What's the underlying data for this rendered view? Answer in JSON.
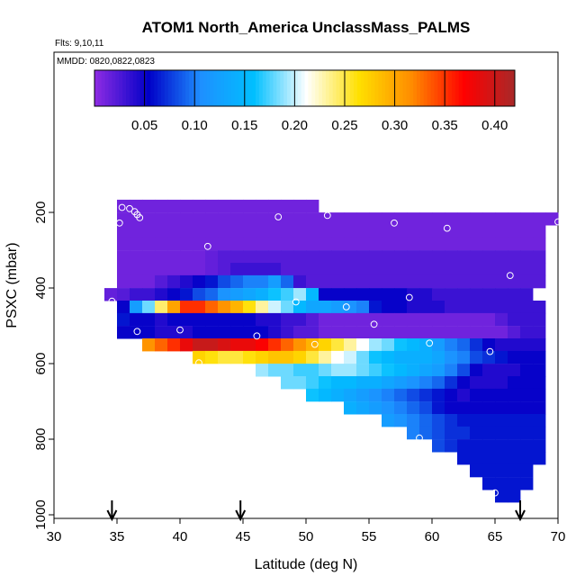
{
  "chart_data": {
    "type": "heatmap",
    "title": "ATOM1 North_America UnclassMass_PALMS",
    "subtitle_flights": "Flts: 9,10,11",
    "subtitle_dates": "MMDD: 0820,0822,0823",
    "xlabel": "Latitude (deg N)",
    "ylabel": "PSXC (mbar)",
    "xlim": [
      30,
      70
    ],
    "ylim": [
      1000,
      0
    ],
    "x_ticks": [
      30,
      35,
      40,
      45,
      50,
      55,
      60,
      65,
      70
    ],
    "y_ticks": [
      200,
      400,
      600,
      800,
      1000
    ],
    "colorbar": {
      "range": [
        0.0,
        0.42
      ],
      "ticks": [
        0.05,
        0.1,
        0.15,
        0.2,
        0.25,
        0.3,
        0.35,
        0.4
      ],
      "tick_labels": [
        "0.05",
        "0.10",
        "0.15",
        "0.20",
        "0.25",
        "0.30",
        "0.35",
        "0.40"
      ],
      "colors": [
        "#8a2be2",
        "#0000c8",
        "#1e90ff",
        "#00bfff",
        "#ffffff",
        "#ffe000",
        "#ff8c00",
        "#ff0000",
        "#a52a2a"
      ]
    },
    "cell_size": {
      "dlat": 1,
      "dp": 33.3
    },
    "rows": [
      {
        "p": 183,
        "lat0": 35,
        "values": [
          0.01,
          0.01,
          0.01,
          0.01,
          0.01,
          0.01,
          0.01,
          0.01,
          0.01,
          0.01,
          0.01,
          0.01,
          0.01,
          0.01,
          0.01,
          0.01
        ]
      },
      {
        "p": 217,
        "lat0": 35,
        "values": [
          0.01,
          0.01,
          0.01,
          0.01,
          0.01,
          0.01,
          0.01,
          0.01,
          0.01,
          0.01,
          0.01,
          0.01,
          0.01,
          0.01,
          0.01,
          0.01,
          0.01,
          0.01,
          0.01,
          0.01,
          0.01,
          0.01,
          0.01,
          0.01,
          0.01,
          0.01,
          0.01,
          0.01,
          0.01,
          0.01,
          0.01,
          0.01,
          0.01,
          0.01,
          0.01
        ]
      },
      {
        "p": 250,
        "lat0": 35,
        "values": [
          0.01,
          0.01,
          0.01,
          0.01,
          0.01,
          0.01,
          0.01,
          0.01,
          0.01,
          0.01,
          0.01,
          0.01,
          0.01,
          0.01,
          0.01,
          0.01,
          0.01,
          0.01,
          0.01,
          0.01,
          0.01,
          0.01,
          0.01,
          0.01,
          0.01,
          0.01,
          0.01,
          0.01,
          0.01,
          0.01,
          0.01,
          0.01,
          0.01,
          0.01
        ]
      },
      {
        "p": 283,
        "lat0": 35,
        "values": [
          0.01,
          0.01,
          0.01,
          0.01,
          0.01,
          0.01,
          0.01,
          0.01,
          0.01,
          0.01,
          0.01,
          0.01,
          0.01,
          0.01,
          0.01,
          0.01,
          0.01,
          0.01,
          0.01,
          0.01,
          0.01,
          0.01,
          0.01,
          0.01,
          0.01,
          0.01,
          0.01,
          0.01,
          0.01,
          0.01,
          0.01,
          0.01,
          0.01,
          0.01
        ]
      },
      {
        "p": 317,
        "lat0": 35,
        "values": [
          0.01,
          0.01,
          0.01,
          0.01,
          0.01,
          0.01,
          0.01,
          0.015,
          0.02,
          0.02,
          0.02,
          0.02,
          0.02,
          0.02,
          0.02,
          0.02,
          0.02,
          0.02,
          0.02,
          0.02,
          0.02,
          0.02,
          0.02,
          0.02,
          0.02,
          0.02,
          0.02,
          0.02,
          0.02,
          0.02,
          0.02,
          0.02,
          0.02,
          0.02
        ]
      },
      {
        "p": 350,
        "lat0": 35,
        "values": [
          0.01,
          0.01,
          0.01,
          0.01,
          0.01,
          0.01,
          0.01,
          0.015,
          0.02,
          0.03,
          0.03,
          0.03,
          0.03,
          0.02,
          0.02,
          0.02,
          0.02,
          0.02,
          0.02,
          0.02,
          0.02,
          0.02,
          0.02,
          0.02,
          0.02,
          0.02,
          0.02,
          0.02,
          0.02,
          0.02,
          0.02,
          0.02,
          0.02,
          0.02
        ]
      },
      {
        "p": 383,
        "lat0": 35,
        "values": [
          0.01,
          0.01,
          0.01,
          0.02,
          0.03,
          0.04,
          0.05,
          0.06,
          0.08,
          0.09,
          0.1,
          0.1,
          0.12,
          0.09,
          0.03,
          0.02,
          0.02,
          0.02,
          0.02,
          0.02,
          0.02,
          0.02,
          0.02,
          0.02,
          0.02,
          0.02,
          0.02,
          0.02,
          0.02,
          0.02,
          0.02,
          0.02,
          0.02,
          0.02
        ]
      },
      {
        "p": 417,
        "lat0": 34,
        "values": [
          0.015,
          0.02,
          0.03,
          0.03,
          0.04,
          0.05,
          0.06,
          0.08,
          0.09,
          0.11,
          0.12,
          0.13,
          0.14,
          0.16,
          0.17,
          0.19,
          0.15,
          0.05,
          0.05,
          0.05,
          0.05,
          0.05,
          0.05,
          0.05,
          0.04,
          0.04,
          0.03,
          0.03,
          0.03,
          0.03,
          0.03,
          0.03,
          0.03,
          0.03
        ]
      },
      {
        "p": 450,
        "lat0": 35,
        "values": [
          0.05,
          0.12,
          0.18,
          0.24,
          0.3,
          0.35,
          0.35,
          0.33,
          0.31,
          0.29,
          0.26,
          0.23,
          0.2,
          0.18,
          0.15,
          0.13,
          0.13,
          0.12,
          0.11,
          0.1,
          0.06,
          0.05,
          0.05,
          0.04,
          0.04,
          0.04,
          0.03,
          0.03,
          0.03,
          0.03,
          0.03,
          0.03,
          0.03,
          0.03
        ]
      },
      {
        "p": 483,
        "lat0": 35,
        "values": [
          0.06,
          0.05,
          0.05,
          0.04,
          0.05,
          0.05,
          0.05,
          0.05,
          0.05,
          0.05,
          0.05,
          0.04,
          0.04,
          0.03,
          0.03,
          0.02,
          0.01,
          0.01,
          0.01,
          0.01,
          0.01,
          0.01,
          0.01,
          0.01,
          0.01,
          0.01,
          0.01,
          0.01,
          0.01,
          0.01,
          0.02,
          0.03,
          0.03,
          0.03
        ]
      },
      {
        "p": 517,
        "lat0": 35,
        "values": [
          0.05,
          0.05,
          0.05,
          0.04,
          0.04,
          0.04,
          0.05,
          0.05,
          0.05,
          0.05,
          0.05,
          0.05,
          0.04,
          0.03,
          0.02,
          0.02,
          0.01,
          0.01,
          0.01,
          0.01,
          0.01,
          0.01,
          0.01,
          0.01,
          0.01,
          0.01,
          0.01,
          0.01,
          0.01,
          0.01,
          0.01,
          0.02,
          0.03,
          0.03
        ]
      },
      {
        "p": 550,
        "lat0": 37,
        "values": [
          0.31,
          0.33,
          0.35,
          0.38,
          0.4,
          0.4,
          0.39,
          0.38,
          0.38,
          0.37,
          0.35,
          0.33,
          0.31,
          0.29,
          0.27,
          0.25,
          0.23,
          0.21,
          0.19,
          0.18,
          0.16,
          0.15,
          0.14,
          0.12,
          0.1,
          0.09,
          0.07,
          0.05,
          0.04,
          0.04,
          0.04,
          0.04
        ]
      },
      {
        "p": 583,
        "lat0": 41,
        "values": [
          0.27,
          0.26,
          0.25,
          0.25,
          0.26,
          0.27,
          0.28,
          0.28,
          0.27,
          0.25,
          0.23,
          0.21,
          0.2,
          0.18,
          0.16,
          0.15,
          0.14,
          0.14,
          0.14,
          0.13,
          0.11,
          0.1,
          0.08,
          0.07,
          0.06,
          0.05,
          0.05,
          0.05
        ]
      },
      {
        "p": 617,
        "lat0": 46,
        "values": [
          0.19,
          0.18,
          0.18,
          0.17,
          0.17,
          0.18,
          0.19,
          0.19,
          0.18,
          0.17,
          0.16,
          0.15,
          0.14,
          0.13,
          0.12,
          0.1,
          0.08,
          0.05,
          0.04,
          0.04,
          0.04,
          0.05,
          0.05
        ]
      },
      {
        "p": 650,
        "lat0": 48,
        "values": [
          0.18,
          0.18,
          0.17,
          0.16,
          0.15,
          0.15,
          0.14,
          0.14,
          0.13,
          0.12,
          0.11,
          0.1,
          0.09,
          0.07,
          0.05,
          0.04,
          0.04,
          0.04,
          0.05,
          0.05,
          0.05
        ]
      },
      {
        "p": 683,
        "lat0": 50,
        "values": [
          0.16,
          0.15,
          0.14,
          0.13,
          0.12,
          0.11,
          0.1,
          0.09,
          0.08,
          0.07,
          0.06,
          0.05,
          0.04,
          0.05,
          0.05,
          0.05,
          0.05,
          0.05,
          0.05
        ]
      },
      {
        "p": 717,
        "lat0": 53,
        "values": [
          0.14,
          0.13,
          0.12,
          0.11,
          0.1,
          0.09,
          0.08,
          0.06,
          0.05,
          0.05,
          0.05,
          0.05,
          0.05,
          0.05,
          0.05,
          0.05
        ]
      },
      {
        "p": 750,
        "lat0": 56,
        "values": [
          0.12,
          0.11,
          0.1,
          0.09,
          0.08,
          0.07,
          0.06,
          0.06,
          0.06,
          0.06,
          0.06,
          0.06,
          0.06
        ]
      },
      {
        "p": 783,
        "lat0": 58,
        "values": [
          0.1,
          0.09,
          0.08,
          0.07,
          0.07,
          0.06,
          0.06,
          0.06,
          0.06,
          0.06,
          0.06
        ]
      },
      {
        "p": 817,
        "lat0": 60,
        "values": [
          0.08,
          0.07,
          0.06,
          0.06,
          0.06,
          0.06,
          0.06,
          0.06,
          0.06
        ]
      },
      {
        "p": 850,
        "lat0": 62,
        "values": [
          0.06,
          0.06,
          0.06,
          0.06,
          0.06,
          0.06,
          0.06
        ]
      },
      {
        "p": 883,
        "lat0": 63,
        "values": [
          0.06,
          0.06,
          0.06,
          0.06,
          0.06
        ]
      },
      {
        "p": 917,
        "lat0": 64,
        "values": [
          0.06,
          0.06,
          0.06,
          0.06
        ]
      },
      {
        "p": 950,
        "lat0": 65,
        "values": [
          0.06,
          0.06
        ]
      }
    ],
    "sample_points": [
      [
        35.4,
        187
      ],
      [
        36.0,
        190
      ],
      [
        36.4,
        198
      ],
      [
        36.6,
        206
      ],
      [
        36.8,
        214
      ],
      [
        35.2,
        228
      ],
      [
        42.2,
        290
      ],
      [
        47.8,
        212
      ],
      [
        51.7,
        208
      ],
      [
        57.0,
        228
      ],
      [
        61.2,
        242
      ],
      [
        70.0,
        225
      ],
      [
        66.2,
        367
      ],
      [
        34.6,
        435
      ],
      [
        49.2,
        437
      ],
      [
        53.2,
        450
      ],
      [
        58.2,
        425
      ],
      [
        55.4,
        496
      ],
      [
        36.6,
        515
      ],
      [
        40.0,
        511
      ],
      [
        46.1,
        527
      ],
      [
        50.7,
        549
      ],
      [
        59.8,
        546
      ],
      [
        64.6,
        568
      ],
      [
        37.8,
        605
      ],
      [
        41.5,
        598
      ],
      [
        59.0,
        797
      ],
      [
        65.0,
        942
      ]
    ],
    "arrows": [
      34.6,
      44.8,
      67.0
    ]
  }
}
